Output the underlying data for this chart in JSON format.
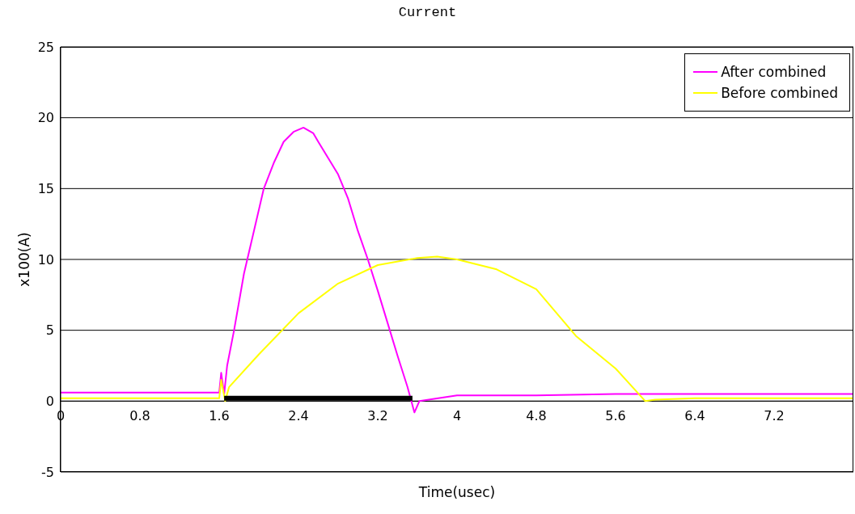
{
  "chart_data": {
    "type": "line",
    "title": "Current",
    "xlabel": "Time(usec)",
    "ylabel": "x100(A)",
    "xlim": [
      0,
      8
    ],
    "xticks": [
      0,
      0.8,
      1.6,
      2.4,
      3.2,
      4,
      4.8,
      5.6,
      6.4,
      7.2
    ],
    "ylim": [
      -5,
      25
    ],
    "yticks": [
      -5,
      0,
      5,
      10,
      15,
      20,
      25
    ],
    "grid": "y",
    "legend": "top right",
    "marker": "none",
    "line_style": "solid",
    "series": [
      {
        "name": "After combined",
        "color": "#ff00ff",
        "x": [
          0,
          0.4,
          0.8,
          1.2,
          1.6,
          1.62,
          1.65,
          1.68,
          1.75,
          1.85,
          1.95,
          2.05,
          2.15,
          2.25,
          2.35,
          2.45,
          2.55,
          2.6,
          2.8,
          2.9,
          3.0,
          3.1,
          3.2,
          3.3,
          3.4,
          3.5,
          3.57,
          3.62,
          4,
          4.8,
          5.6,
          6.4,
          7.2,
          8
        ],
        "values": [
          0.6,
          0.6,
          0.6,
          0.6,
          0.6,
          2.0,
          0.5,
          2.5,
          5,
          9,
          12,
          15,
          16.8,
          18.3,
          19.0,
          19.3,
          18.9,
          18.3,
          16,
          14.3,
          12,
          10,
          7.8,
          5.5,
          3.2,
          1,
          -0.8,
          0,
          0.4,
          0.4,
          0.5,
          0.5,
          0.5,
          0.5
        ]
      },
      {
        "name": "Before combined",
        "color": "#ffff00",
        "x": [
          0,
          0.4,
          0.8,
          1.2,
          1.6,
          1.62,
          1.66,
          1.7,
          2.0,
          2.4,
          2.8,
          3.2,
          3.6,
          3.8,
          4.0,
          4.4,
          4.8,
          5.2,
          5.6,
          5.9,
          6.0,
          6.4,
          7.2,
          8
        ],
        "values": [
          0.2,
          0.2,
          0.2,
          0.2,
          0.2,
          1.5,
          0,
          1,
          3.3,
          6.2,
          8.3,
          9.6,
          10.1,
          10.2,
          10,
          9.3,
          7.9,
          4.6,
          2.3,
          0,
          0.1,
          0.2,
          0.2,
          0.2
        ]
      },
      {
        "color": "#000000",
        "x": [
          1.65,
          3.55
        ],
        "values": [
          0.2,
          0.2
        ]
      }
    ]
  }
}
